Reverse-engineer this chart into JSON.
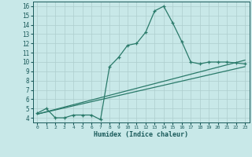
{
  "xlabel": "Humidex (Indice chaleur)",
  "bg_color": "#c8e8e8",
  "line_color": "#2a7a6a",
  "grid_color": "#aecece",
  "font_color": "#1a5a5a",
  "xlim": [
    -0.5,
    23.5
  ],
  "ylim": [
    3.5,
    16.5
  ],
  "xticks": [
    0,
    1,
    2,
    3,
    4,
    5,
    6,
    7,
    8,
    9,
    10,
    11,
    12,
    13,
    14,
    15,
    16,
    17,
    18,
    19,
    20,
    21,
    22,
    23
  ],
  "yticks": [
    4,
    5,
    6,
    7,
    8,
    9,
    10,
    11,
    12,
    13,
    14,
    15,
    16
  ],
  "series1_x": [
    0,
    1,
    2,
    3,
    4,
    5,
    6,
    7,
    8,
    9,
    10,
    11,
    12,
    13,
    14,
    15,
    16,
    17,
    18,
    19,
    20,
    21,
    22,
    23
  ],
  "series1_y": [
    4.5,
    5.0,
    4.0,
    4.0,
    4.3,
    4.3,
    4.3,
    3.8,
    9.5,
    10.5,
    11.8,
    12.0,
    13.2,
    15.5,
    16.0,
    14.2,
    12.2,
    10.0,
    9.8,
    10.0,
    10.0,
    10.0,
    9.9,
    9.8
  ],
  "trend1_x": [
    0,
    23
  ],
  "trend1_y": [
    4.4,
    9.5
  ],
  "trend2_x": [
    0,
    23
  ],
  "trend2_y": [
    4.4,
    10.2
  ],
  "font_family": "monospace",
  "xlabel_fontsize": 6.0,
  "tick_fontsize_x": 4.5,
  "tick_fontsize_y": 5.5
}
